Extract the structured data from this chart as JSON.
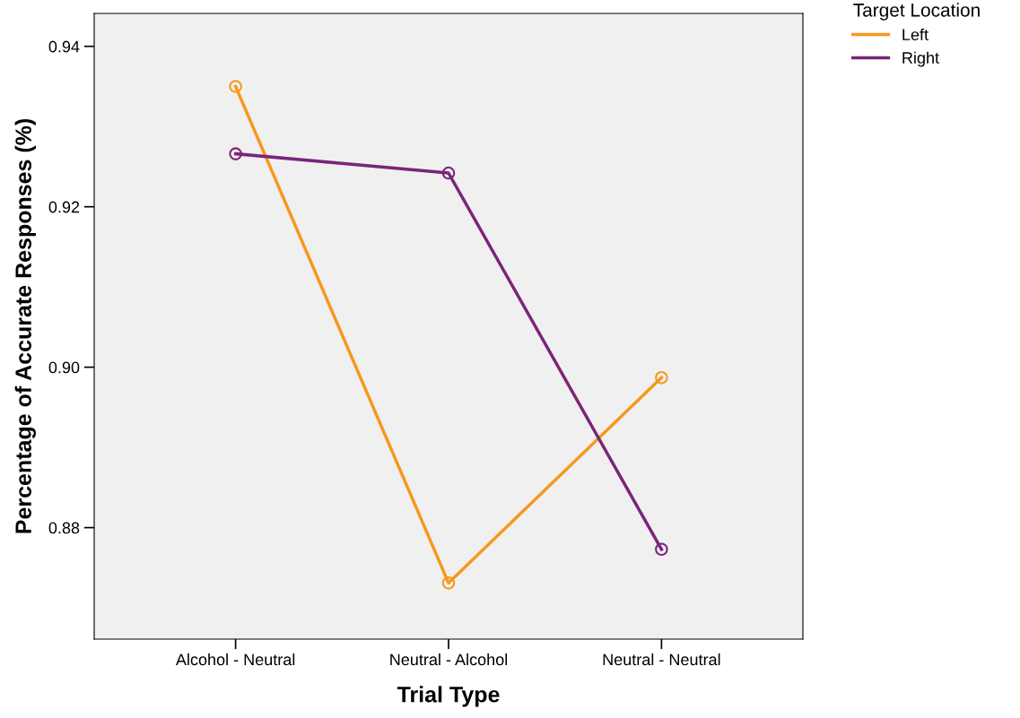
{
  "chart_data": {
    "type": "line",
    "xlabel": "Trial Type",
    "ylabel": "Percentage of Accurate Responses (%)",
    "categories": [
      "Alcohol - Neutral",
      "Neutral - Alcohol",
      "Neutral - Neutral"
    ],
    "series": [
      {
        "name": "Left",
        "color": "#f7981d",
        "values": [
          0.935,
          0.8731,
          0.8987
        ]
      },
      {
        "name": "Right",
        "color": "#7b2479",
        "values": [
          0.9266,
          0.9242,
          0.8773
        ]
      }
    ],
    "legend_title": "Target Location",
    "legend": "top right",
    "ylim": [
      0.8661,
      0.9441
    ],
    "yticks": [
      {
        "value": 0.88,
        "label": "0.88"
      },
      {
        "value": 0.9,
        "label": "0.90"
      },
      {
        "value": 0.92,
        "label": "0.92"
      },
      {
        "value": 0.94,
        "label": "0.94"
      }
    ],
    "marker": "circle",
    "line_style": "solid",
    "grid": false
  }
}
